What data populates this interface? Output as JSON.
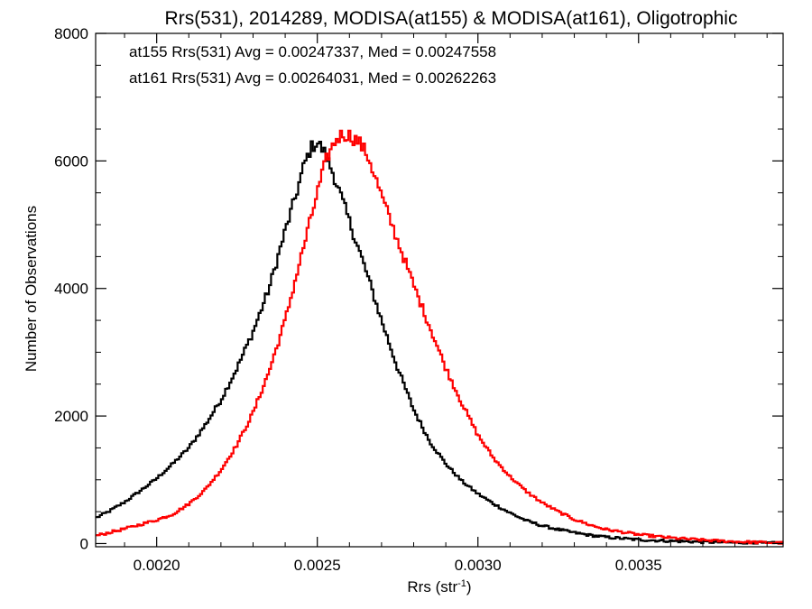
{
  "chart_data": {
    "type": "line",
    "title": "Rrs(531), 2014289, MODISA(at155) & MODISA(at161), Oligotrophic",
    "xlabel": "Rrs (str",
    "xlabel_sup": "-1",
    "xlabel_end": ")",
    "ylabel": "Number of Observations",
    "xlim": [
      0.00181,
      0.00395
    ],
    "ylim": [
      -50,
      8000
    ],
    "grid": false,
    "x_ticks": [
      {
        "value": 0.002,
        "label": "0.0020"
      },
      {
        "value": 0.0025,
        "label": "0.0025"
      },
      {
        "value": 0.003,
        "label": "0.0030"
      },
      {
        "value": 0.0035,
        "label": "0.0035"
      }
    ],
    "y_ticks": [
      {
        "value": 0,
        "label": "0"
      },
      {
        "value": 2000,
        "label": "2000"
      },
      {
        "value": 4000,
        "label": "4000"
      },
      {
        "value": 6000,
        "label": "6000"
      },
      {
        "value": 8000,
        "label": "8000"
      }
    ],
    "annotations": [
      {
        "text": "at155 Rrs(531) Avg = 0.00247337, Med = 0.00247558",
        "color": "#000000"
      },
      {
        "text": "at161 Rrs(531) Avg = 0.00264031, Med = 0.00262263",
        "color": "#ff0000"
      }
    ],
    "series": [
      {
        "color": "#000000",
        "x": [
          0.00181,
          0.00185,
          0.0019,
          0.00195,
          0.002,
          0.00205,
          0.0021,
          0.00215,
          0.0022,
          0.00225,
          0.0023,
          0.00235,
          0.0024,
          0.00243,
          0.00246,
          0.00248,
          0.0025,
          0.00252,
          0.00255,
          0.0026,
          0.00265,
          0.0027,
          0.00275,
          0.0028,
          0.00285,
          0.0029,
          0.00295,
          0.003,
          0.00305,
          0.0031,
          0.00315,
          0.0032,
          0.00325,
          0.0033,
          0.00335,
          0.0034,
          0.0035,
          0.0036,
          0.0037,
          0.0038,
          0.00395
        ],
        "y": [
          400,
          500,
          650,
          830,
          1020,
          1250,
          1500,
          1850,
          2250,
          2750,
          3320,
          4000,
          4900,
          5400,
          5950,
          6200,
          6300,
          6150,
          5800,
          5050,
          4300,
          3500,
          2750,
          2100,
          1600,
          1250,
          980,
          780,
          620,
          480,
          360,
          280,
          220,
          170,
          130,
          100,
          60,
          40,
          25,
          15,
          5
        ]
      },
      {
        "color": "#ff0000",
        "x": [
          0.00181,
          0.00185,
          0.0019,
          0.00195,
          0.002,
          0.00205,
          0.0021,
          0.00215,
          0.0022,
          0.00225,
          0.0023,
          0.00235,
          0.0024,
          0.00245,
          0.0025,
          0.00253,
          0.00256,
          0.00258,
          0.0026,
          0.00263,
          0.00266,
          0.0027,
          0.00275,
          0.0028,
          0.00285,
          0.0029,
          0.00295,
          0.003,
          0.00305,
          0.0031,
          0.00315,
          0.0032,
          0.00325,
          0.0033,
          0.00335,
          0.0034,
          0.0035,
          0.0036,
          0.0037,
          0.0038,
          0.0039,
          0.00395
        ],
        "y": [
          120,
          170,
          230,
          300,
          370,
          460,
          620,
          840,
          1150,
          1550,
          2050,
          2700,
          3500,
          4500,
          5500,
          6050,
          6350,
          6420,
          6400,
          6300,
          6050,
          5450,
          4750,
          4050,
          3400,
          2750,
          2200,
          1700,
          1330,
          1050,
          820,
          640,
          500,
          380,
          290,
          220,
          140,
          90,
          55,
          30,
          15,
          8
        ]
      }
    ]
  }
}
